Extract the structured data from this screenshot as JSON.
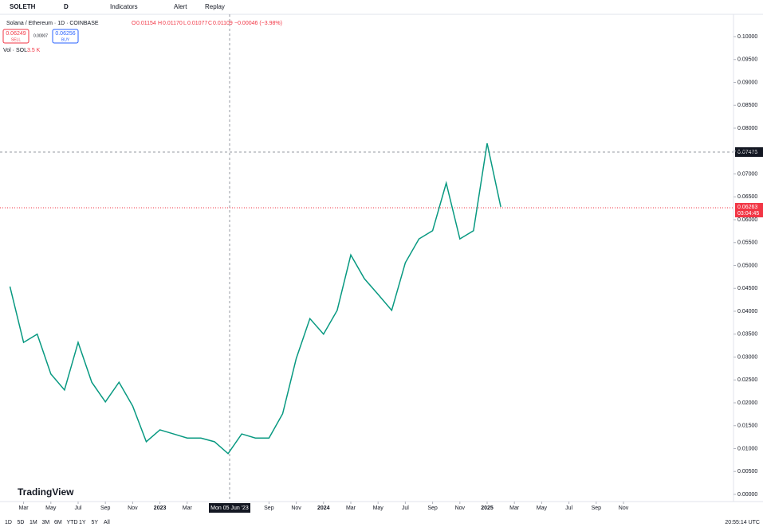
{
  "toolbar": {
    "symbol": "SOLETH",
    "interval": "D",
    "indicators": "Indicators",
    "alert": "Alert",
    "replay": "Replay"
  },
  "legend": {
    "title": "Solana / Ethereum · 1D · COINBASE",
    "o_label": "O",
    "o": "0.01154",
    "h_label": "H",
    "h": "0.01170",
    "l_label": "L",
    "l": "0.01077",
    "c_label": "C",
    "c": "0.01109",
    "change": "−0.00046 (−3.98%)",
    "sell_price": "0.06249",
    "sell": "SELL",
    "spread": "0.00007",
    "buy_price": "0.06256",
    "buy": "BUY",
    "volume": "Vol · SOL",
    "volume_value": "3.5 K"
  },
  "crosshair": {
    "price": "0.07475",
    "date": "Mon 05 Jun '23"
  },
  "last_price": {
    "price": "0.06263",
    "countdown": "03:04:45"
  },
  "chart_data": {
    "type": "line",
    "series": [
      {
        "name": "SOLETH",
        "color": "#089981",
        "values": [
          0.0454,
          0.0332,
          0.035,
          0.0263,
          0.0228,
          0.0332,
          0.0245,
          0.0202,
          0.0245,
          0.0193,
          0.0115,
          0.0141,
          0.0132,
          0.0123,
          0.0123,
          0.0115,
          0.0089,
          0.0132,
          0.0123,
          0.0123,
          0.0176,
          0.0297,
          0.0384,
          0.035,
          0.0402,
          0.0523,
          0.0471,
          0.0437,
          0.0402,
          0.0506,
          0.0558,
          0.0576,
          0.068,
          0.0558,
          0.0576,
          0.0767,
          0.0628
        ]
      }
    ],
    "xlim": [
      -0.73,
      53.07
    ],
    "xticks": [
      {
        "value": 1,
        "label": "Mar"
      },
      {
        "value": 3,
        "label": "May"
      },
      {
        "value": 5,
        "label": "Jul"
      },
      {
        "value": 7,
        "label": "Sep"
      },
      {
        "value": 9,
        "label": "Nov"
      },
      {
        "value": 11,
        "label": "2023"
      },
      {
        "value": 13,
        "label": "Mar"
      },
      {
        "value": 19,
        "label": "Sep"
      },
      {
        "value": 21,
        "label": "Nov"
      },
      {
        "value": 23,
        "label": "2024"
      },
      {
        "value": 25,
        "label": "Mar"
      },
      {
        "value": 27,
        "label": "May"
      },
      {
        "value": 29,
        "label": "Jul"
      },
      {
        "value": 31,
        "label": "Sep"
      },
      {
        "value": 33,
        "label": "Nov"
      },
      {
        "value": 35,
        "label": "2025"
      },
      {
        "value": 37,
        "label": "Mar"
      },
      {
        "value": 39,
        "label": "May"
      },
      {
        "value": 41,
        "label": "Jul"
      },
      {
        "value": 43,
        "label": "Sep"
      },
      {
        "value": 45,
        "label": "Nov"
      }
    ],
    "ylim": [
      -0.00157,
      0.10487
    ],
    "yticks": [
      {
        "value": 0,
        "label": "0.00000"
      },
      {
        "value": 0.005,
        "label": "0.00500"
      },
      {
        "value": 0.01,
        "label": "0.01000"
      },
      {
        "value": 0.015,
        "label": "0.01500"
      },
      {
        "value": 0.02,
        "label": "0.02000"
      },
      {
        "value": 0.025,
        "label": "0.02500"
      },
      {
        "value": 0.03,
        "label": "0.03000"
      },
      {
        "value": 0.035,
        "label": "0.03500"
      },
      {
        "value": 0.04,
        "label": "0.04000"
      },
      {
        "value": 0.045,
        "label": "0.04500"
      },
      {
        "value": 0.05,
        "label": "0.05000"
      },
      {
        "value": 0.055,
        "label": "0.05500"
      },
      {
        "value": 0.06,
        "label": "0.06000"
      },
      {
        "value": 0.065,
        "label": "0.06500"
      },
      {
        "value": 0.07,
        "label": "0.07000"
      },
      {
        "value": 0.075,
        "label": "0.07500"
      },
      {
        "value": 0.08,
        "label": "0.08000"
      },
      {
        "value": 0.085,
        "label": "0.08500"
      },
      {
        "value": 0.09,
        "label": "0.09000"
      },
      {
        "value": 0.095,
        "label": "0.09500"
      },
      {
        "value": 0.1,
        "label": "0.10000"
      }
    ],
    "grid": false
  },
  "footer": {
    "ranges": [
      "1D",
      "5D",
      "1M",
      "3M",
      "6M",
      "YTD",
      "1Y",
      "5Y",
      "All"
    ],
    "time": "20:55:14 UTC",
    "watermark": "TradingView"
  }
}
